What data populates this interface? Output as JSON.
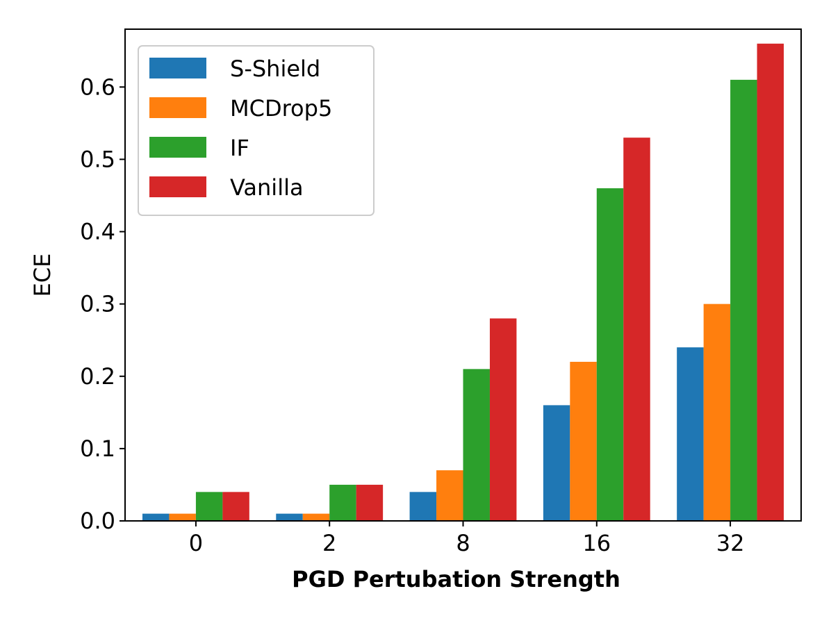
{
  "chart_data": {
    "type": "bar",
    "title": "",
    "xlabel": "PGD Pertubation Strength",
    "ylabel": "ECE",
    "categories": [
      "0",
      "2",
      "8",
      "16",
      "32"
    ],
    "ylim": [
      0.0,
      0.68
    ],
    "yticks": [
      "0.0",
      "0.1",
      "0.2",
      "0.3",
      "0.4",
      "0.5",
      "0.6"
    ],
    "legend_position": "top-left",
    "grid": false,
    "series": [
      {
        "name": "S-Shield",
        "color": "#1f77b4",
        "values": [
          0.01,
          0.01,
          0.04,
          0.16,
          0.24
        ]
      },
      {
        "name": "MCDrop5",
        "color": "#ff7f0e",
        "values": [
          0.01,
          0.01,
          0.07,
          0.22,
          0.3
        ]
      },
      {
        "name": "IF",
        "color": "#2ca02c",
        "values": [
          0.04,
          0.05,
          0.21,
          0.46,
          0.61
        ]
      },
      {
        "name": "Vanilla",
        "color": "#d62728",
        "values": [
          0.04,
          0.05,
          0.28,
          0.53,
          0.66
        ]
      }
    ]
  }
}
